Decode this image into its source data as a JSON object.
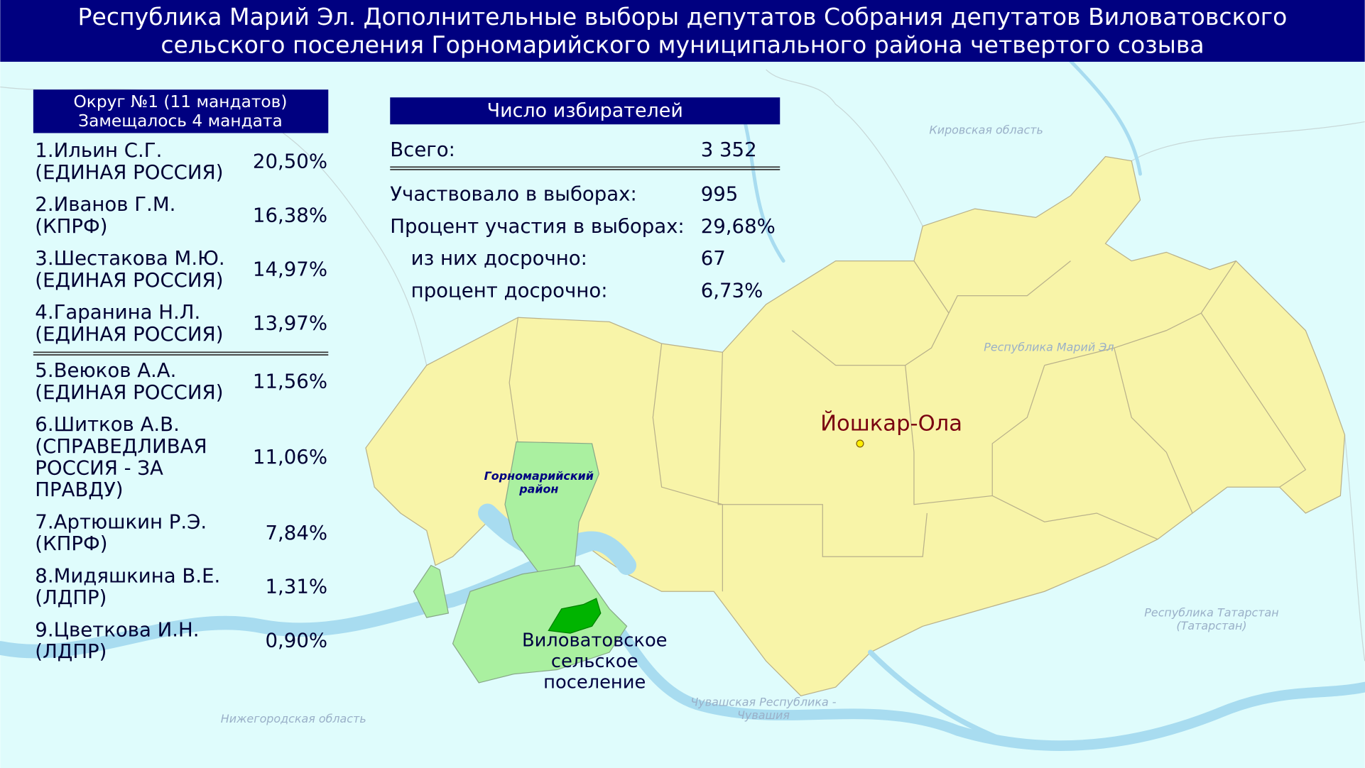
{
  "header": {
    "title_lines": [
      "Республика Марий Эл. Дополнительные выборы депутатов Собрания депутатов Виловатовского",
      "сельского поселения Горномарийского муниципального района четвертого созыва"
    ]
  },
  "district": {
    "title": "Округ №1 (11 мандатов)",
    "subtitle": "Замещалось 4 мандата",
    "candidates": [
      {
        "name_lines": [
          "1.Ильин С.Г.",
          "(ЕДИНАЯ РОССИЯ)"
        ],
        "percent": "20,50%"
      },
      {
        "name_lines": [
          "2.Иванов Г.М.",
          "(КПРФ)"
        ],
        "percent": "16,38%"
      },
      {
        "name_lines": [
          "3.Шестакова М.Ю.",
          "(ЕДИНАЯ РОССИЯ)"
        ],
        "percent": "14,97%"
      },
      {
        "name_lines": [
          "4.Гаранина Н.Л.",
          "(ЕДИНАЯ РОССИЯ)"
        ],
        "percent": "13,97%"
      },
      {
        "name_lines": [
          "5.Веюков А.А.",
          "(ЕДИНАЯ РОССИЯ)"
        ],
        "percent": "11,56%"
      },
      {
        "name_lines": [
          "6.Шитков А.В.",
          "(СПРАВЕДЛИВАЯ",
          "РОССИЯ - ЗА",
          "ПРАВДУ)"
        ],
        "percent": "11,06%"
      },
      {
        "name_lines": [
          "7.Артюшкин Р.Э.",
          "(КПРФ)"
        ],
        "percent": "7,84%"
      },
      {
        "name_lines": [
          "8.Мидяшкина В.Е.",
          "(ЛДПР)"
        ],
        "percent": "1,31%"
      },
      {
        "name_lines": [
          "9.Цветкова И.Н.",
          "(ЛДПР)"
        ],
        "percent": "0,90%"
      }
    ]
  },
  "voters": {
    "title": "Число избирателей",
    "rows": [
      {
        "label": "Всего:",
        "value": "3 352"
      },
      {
        "label": "Участвовало в выборах:",
        "value": "995"
      },
      {
        "label": "Процент участия в выборах:",
        "value": "29,68%"
      },
      {
        "label": "из них досрочно:",
        "value": "67"
      },
      {
        "label": "процент досрочно:",
        "value": "6,73%"
      }
    ]
  },
  "map_labels": {
    "kirov": "Кировская область",
    "mari_el": "Республика Марий Эл",
    "capital": "Йошкар-Ола",
    "gornomari": [
      "Горномарийский",
      "район"
    ],
    "settlement": [
      "Виловатовское",
      "сельское",
      "поселение"
    ],
    "tatarstan": [
      "Республика Татарстан",
      "(Татарстан)"
    ],
    "chuvashia": [
      "Чувашская Республика -",
      "Чувашия"
    ],
    "nizhny": "Нижегородская область"
  }
}
